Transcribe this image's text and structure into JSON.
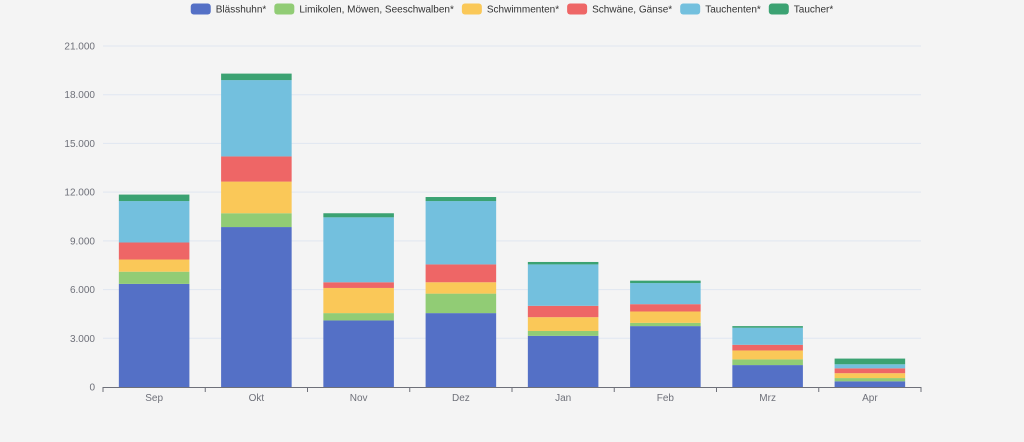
{
  "chart_data": {
    "type": "bar",
    "stacked": true,
    "title": "",
    "xlabel": "",
    "ylabel": "",
    "categories": [
      "Sep",
      "Okt",
      "Nov",
      "Dez",
      "Jan",
      "Feb",
      "Mrz",
      "Apr"
    ],
    "ylim": [
      0,
      21000
    ],
    "yticks": [
      0,
      3000,
      6000,
      9000,
      12000,
      15000,
      18000,
      21000
    ],
    "ytick_labels": [
      "0",
      "3.000",
      "6.000",
      "9.000",
      "12.000",
      "15.000",
      "18.000",
      "21.000"
    ],
    "grid": true,
    "legend_position": "top-center",
    "series": [
      {
        "name": "Blässhuhn*",
        "color": "#5470c6",
        "values": [
          6350,
          9850,
          4100,
          4550,
          3150,
          3750,
          1350,
          350
        ]
      },
      {
        "name": "Limikolen, Möwen, Seeschwalben*",
        "color": "#91cc75",
        "values": [
          750,
          850,
          450,
          1200,
          300,
          200,
          350,
          200
        ]
      },
      {
        "name": "Schwimmenten*",
        "color": "#fac858",
        "values": [
          750,
          1950,
          1550,
          700,
          850,
          700,
          550,
          300
        ]
      },
      {
        "name": "Schwäne, Gänse*",
        "color": "#ee6666",
        "values": [
          1050,
          1550,
          350,
          1100,
          700,
          450,
          350,
          300
        ]
      },
      {
        "name": "Tauchenten*",
        "color": "#73c0de",
        "values": [
          2550,
          4700,
          4000,
          3900,
          2550,
          1300,
          1050,
          250
        ]
      },
      {
        "name": "Taucher*",
        "color": "#3ba272",
        "values": [
          400,
          400,
          250,
          250,
          150,
          150,
          100,
          350
        ]
      }
    ]
  }
}
